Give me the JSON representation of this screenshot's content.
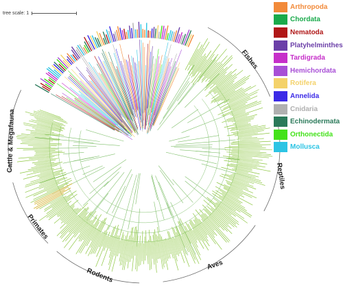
{
  "scale_label": "tree scale: 1",
  "legend": [
    {
      "label": "Arthropoda",
      "color": "#f28a3a"
    },
    {
      "label": "Chordata",
      "color": "#1aaa4b"
    },
    {
      "label": "Nematoda",
      "color": "#b01818"
    },
    {
      "label": "Platyhelminthes",
      "color": "#6b3fa8"
    },
    {
      "label": "Tardigrada",
      "color": "#c62fc9"
    },
    {
      "label": "Hemichordata",
      "color": "#a84fd6"
    },
    {
      "label": "Rotifera",
      "color": "#f4d26a"
    },
    {
      "label": "Annelida",
      "color": "#3b2ae6"
    },
    {
      "label": "Cnidaria",
      "color": "#b0b0b0"
    },
    {
      "label": "Echinodermata",
      "color": "#2b7a5a"
    },
    {
      "label": "Orthonectida",
      "color": "#44e21a"
    },
    {
      "label": "Mollusca",
      "color": "#2cc4e4"
    }
  ],
  "clades": {
    "fishes": "Fishes",
    "reptiles": "Reptiles",
    "aves": "Aves",
    "rodents": "Rodents",
    "primates": "Primates",
    "cattle": "Cattle & Megafauna"
  },
  "colors": {
    "chordata_leaf": "#8cc63f",
    "chordata_branch": "#7fbf6a",
    "highlight": "#c9a000"
  }
}
